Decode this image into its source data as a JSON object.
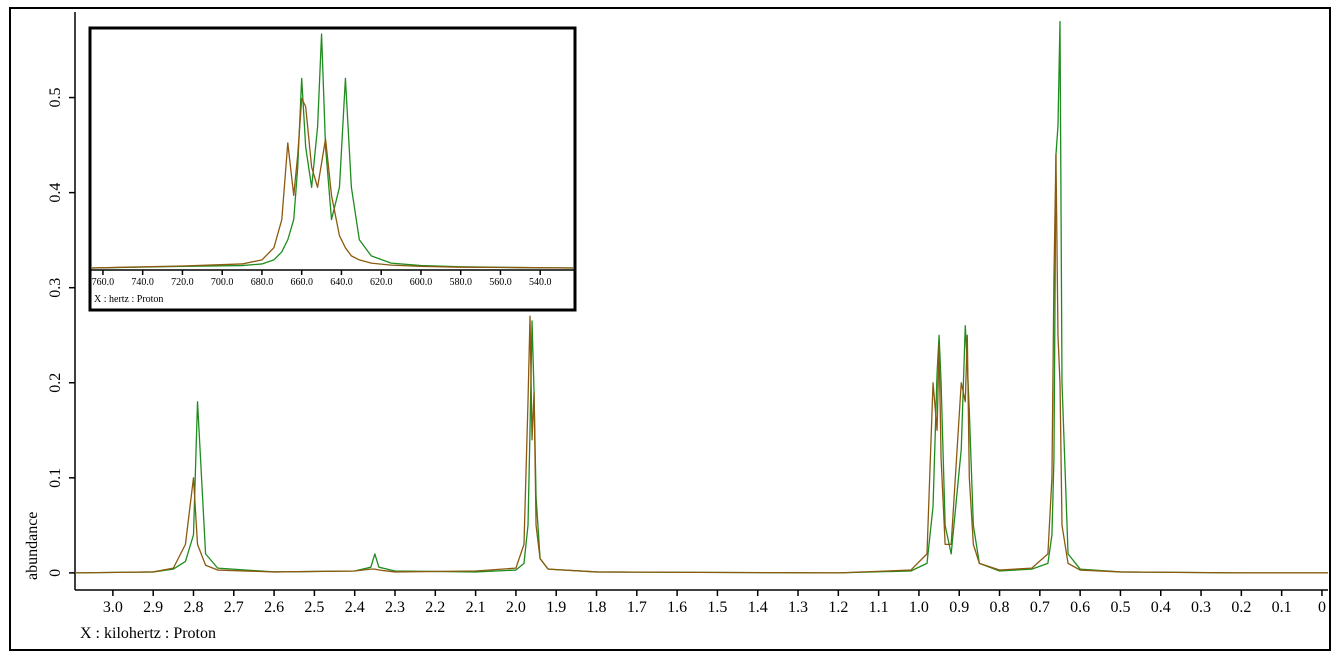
{
  "chart_data": [
    {
      "type": "line",
      "x_label": "X : kilohertz : Proton",
      "y_label": "abundance",
      "x": [
        3.094,
        2.9,
        2.85,
        2.82,
        2.8,
        2.79,
        2.77,
        2.74,
        2.6,
        2.4,
        2.36,
        2.35,
        2.34,
        2.3,
        2.1,
        2.0,
        1.98,
        1.97,
        1.965,
        1.96,
        1.955,
        1.95,
        1.94,
        1.92,
        1.8,
        1.2,
        1.02,
        0.98,
        0.965,
        0.955,
        0.95,
        0.945,
        0.935,
        0.92,
        0.895,
        0.885,
        0.88,
        0.875,
        0.865,
        0.85,
        0.8,
        0.72,
        0.68,
        0.67,
        0.665,
        0.66,
        0.655,
        0.65,
        0.645,
        0.63,
        0.6,
        0.5,
        0.2,
        -0.015
      ],
      "series": [
        {
          "color": "#1e8c1e",
          "values": [
            0,
            0.001,
            0.004,
            0.012,
            0.04,
            0.18,
            0.02,
            0.005,
            0.001,
            0.002,
            0.006,
            0.02,
            0.006,
            0.002,
            0.001,
            0.003,
            0.01,
            0.05,
            0.15,
            0.265,
            0.19,
            0.08,
            0.015,
            0.004,
            0.001,
            0,
            0.002,
            0.01,
            0.07,
            0.21,
            0.25,
            0.2,
            0.05,
            0.02,
            0.13,
            0.26,
            0.22,
            0.17,
            0.05,
            0.01,
            0.002,
            0.004,
            0.01,
            0.04,
            0.12,
            0.44,
            0.47,
            0.58,
            0.2,
            0.02,
            0.004,
            0.001,
            0,
            0
          ]
        },
        {
          "color": "#8b5a10",
          "values": [
            0,
            0.001,
            0.005,
            0.03,
            0.1,
            0.03,
            0.008,
            0.003,
            0.001,
            0.002,
            0.004,
            0.004,
            0.003,
            0.001,
            0.002,
            0.005,
            0.03,
            0.18,
            0.27,
            0.14,
            0.19,
            0.05,
            0.015,
            0.004,
            0.001,
            0,
            0.003,
            0.02,
            0.2,
            0.15,
            0.24,
            0.12,
            0.03,
            0.03,
            0.2,
            0.18,
            0.25,
            0.1,
            0.03,
            0.01,
            0.003,
            0.005,
            0.02,
            0.1,
            0.31,
            0.44,
            0.25,
            0.2,
            0.05,
            0.01,
            0.003,
            0.001,
            0,
            0
          ]
        }
      ],
      "xlim": [
        3.094,
        -0.015
      ],
      "ylim": [
        -0.018,
        0.59
      ],
      "xticks": [
        {
          "value": 3,
          "label": "3.0"
        },
        2.9,
        2.8,
        2.7,
        2.6,
        2.5,
        2.4,
        2.3,
        2.2,
        2.1,
        {
          "value": 2,
          "label": "2.0"
        },
        1.9,
        1.8,
        1.7,
        1.6,
        1.5,
        1.4,
        1.3,
        1.2,
        1.1,
        {
          "value": 1,
          "label": "1.0"
        },
        0.9,
        0.8,
        0.7,
        0.6,
        0.5,
        0.4,
        0.3,
        0.2,
        0.1,
        0
      ],
      "yticks": [
        0,
        0.1,
        0.2,
        0.3,
        0.4,
        0.5
      ]
    },
    {
      "type": "line",
      "x_label": "X : hertz : Proton",
      "x": [
        766,
        720,
        690,
        680,
        674,
        670,
        667,
        664,
        662,
        660,
        658,
        655,
        652,
        650,
        648,
        645,
        641,
        638,
        635,
        631,
        625,
        615,
        600,
        580,
        550,
        523
      ],
      "series": [
        {
          "color": "#1e8c1e",
          "values": [
            0,
            0.004,
            0.006,
            0.01,
            0.02,
            0.04,
            0.07,
            0.12,
            0.25,
            0.47,
            0.3,
            0.2,
            0.35,
            0.58,
            0.3,
            0.12,
            0.2,
            0.47,
            0.2,
            0.07,
            0.03,
            0.012,
            0.006,
            0.003,
            0.001,
            0
          ]
        },
        {
          "color": "#8b5a10",
          "values": [
            0,
            0.005,
            0.01,
            0.02,
            0.05,
            0.12,
            0.31,
            0.18,
            0.28,
            0.42,
            0.4,
            0.25,
            0.2,
            0.26,
            0.32,
            0.18,
            0.08,
            0.05,
            0.03,
            0.02,
            0.012,
            0.007,
            0.004,
            0.002,
            0.001,
            0
          ]
        }
      ],
      "xlim": [
        766,
        523
      ],
      "ylim": [
        -0.005,
        0.59
      ],
      "xticks": [
        {
          "value": 760,
          "label": "760.0"
        },
        {
          "value": 740,
          "label": "740.0"
        },
        {
          "value": 720,
          "label": "720.0"
        },
        {
          "value": 700,
          "label": "700.0"
        },
        {
          "value": 680,
          "label": "680.0"
        },
        {
          "value": 660,
          "label": "660.0"
        },
        {
          "value": 640,
          "label": "640.0"
        },
        {
          "value": 620,
          "label": "620.0"
        },
        {
          "value": 600,
          "label": "600.0"
        },
        {
          "value": 580,
          "label": "580.0"
        },
        {
          "value": 560,
          "label": "560.0"
        },
        {
          "value": 540,
          "label": "540.0"
        }
      ]
    }
  ]
}
